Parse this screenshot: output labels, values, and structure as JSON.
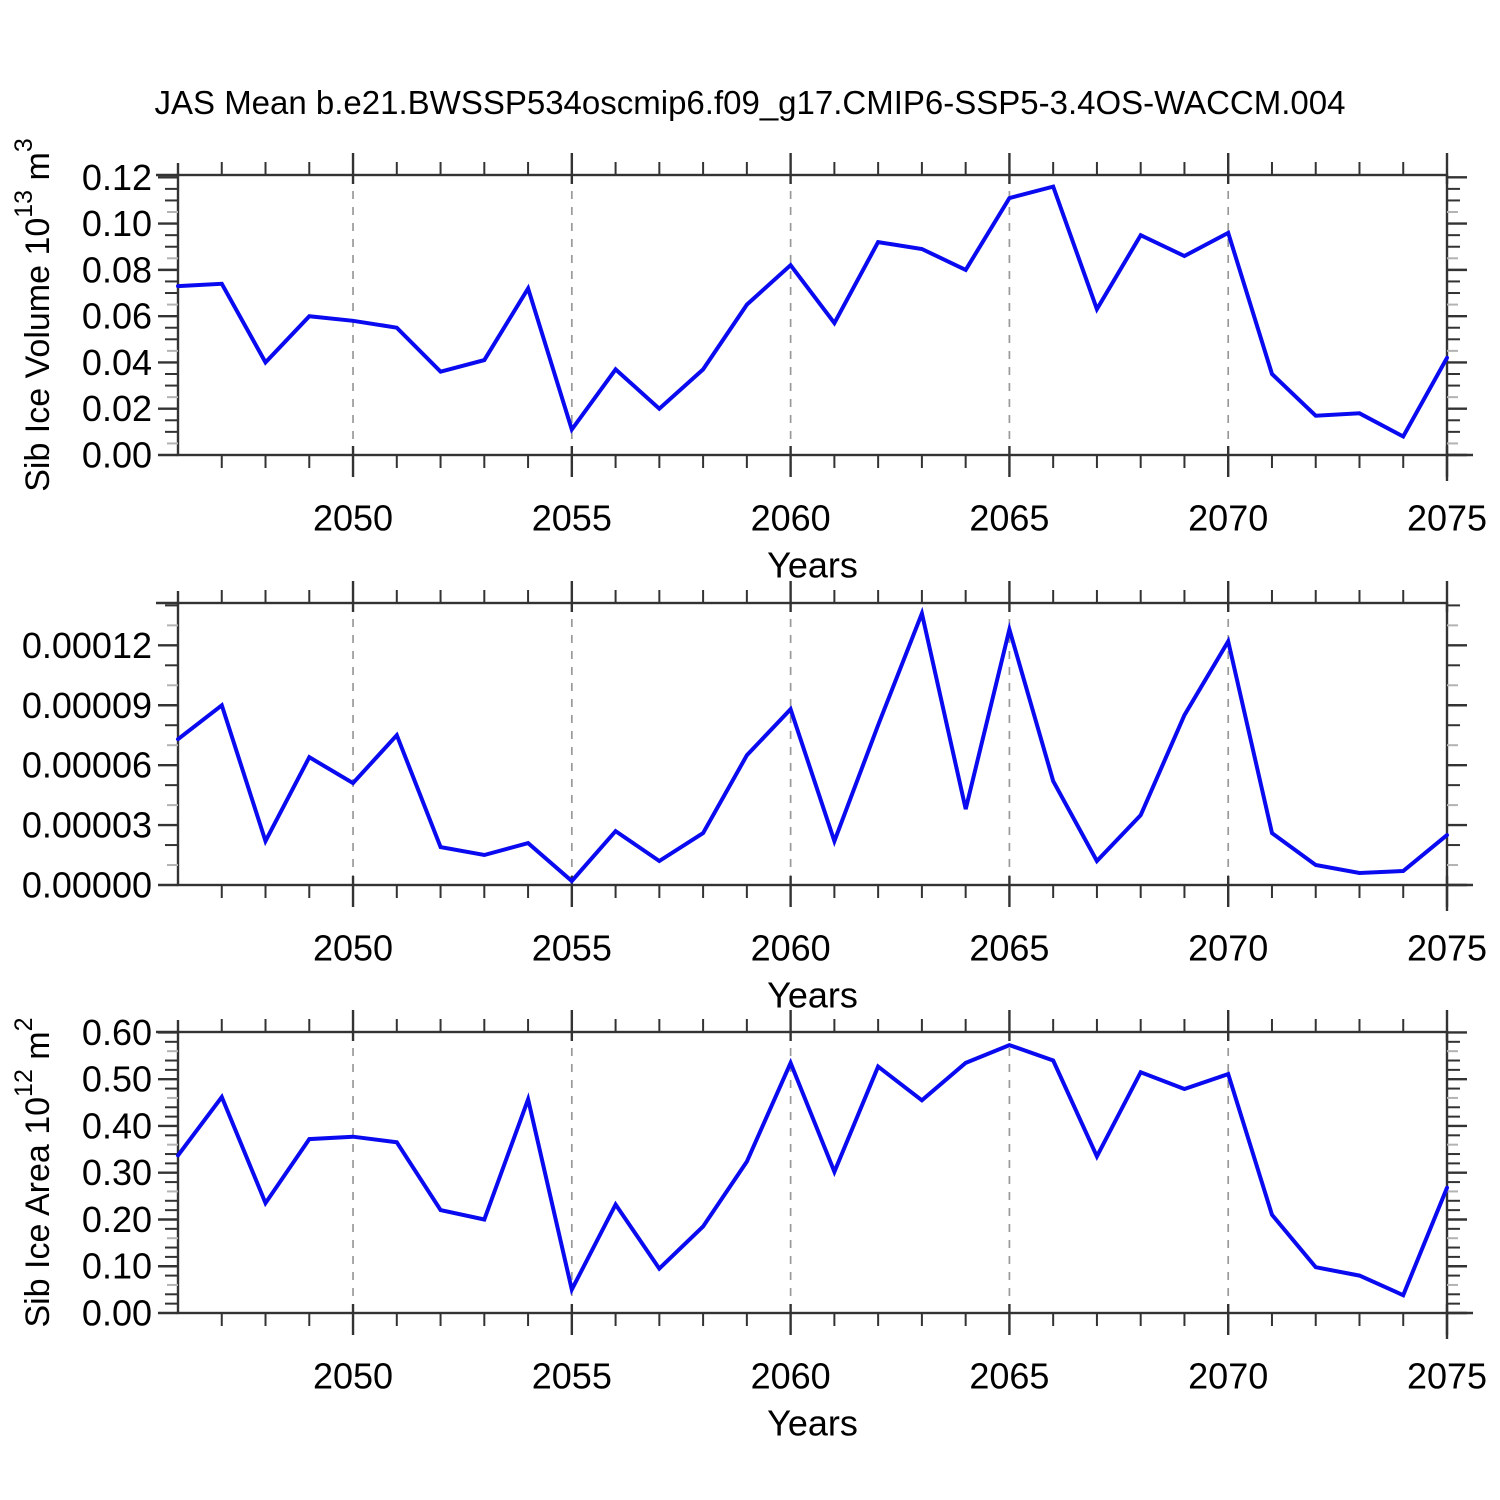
{
  "title": "JAS Mean b.e21.BWSSP534oscmip6.f09_g17.CMIP6-SSP5-3.4OS-WACCM.004",
  "colors": {
    "line": "#0a0af0",
    "axis": "#333333",
    "grid": "#999999",
    "gray_minor": "#b3b3b3",
    "text": "#000000",
    "background": "#ffffff"
  },
  "xlabel": "Years",
  "years": [
    2046,
    2047,
    2048,
    2049,
    2050,
    2051,
    2052,
    2053,
    2054,
    2055,
    2056,
    2057,
    2058,
    2059,
    2060,
    2061,
    2062,
    2063,
    2064,
    2065,
    2066,
    2067,
    2068,
    2069,
    2070,
    2071,
    2072,
    2073,
    2074,
    2075
  ],
  "chart_data": [
    {
      "type": "line",
      "title": "JAS Mean b.e21.BWSSP534oscmip6.f09_g17.CMIP6-SSP5-3.4OS-WACCM.004",
      "ylabel": "Sib Ice Volume 10^13 m^3",
      "ylabel_parts": {
        "base": "Sib Ice Volume 10",
        "exp": "13",
        "unit": " m",
        "unit_exp": "3"
      },
      "xlabel": "Years",
      "xlim": [
        2046,
        2075
      ],
      "ylim": [
        0,
        0.121
      ],
      "xticks": [
        2050,
        2055,
        2060,
        2065,
        2070,
        2075
      ],
      "grid_years": [
        2050,
        2055,
        2060,
        2065,
        2070
      ],
      "ytick_values": [
        0.0,
        0.02,
        0.04,
        0.06,
        0.08,
        0.1,
        0.12
      ],
      "ytick_labels": [
        "0.00",
        "0.02",
        "0.04",
        "0.06",
        "0.08",
        "0.10",
        "0.12"
      ],
      "minor_step": 0.005,
      "gray_minor_index": 0,
      "legend": "none",
      "grid": "vertical-dashed",
      "values": [
        0.073,
        0.074,
        0.04,
        0.06,
        0.058,
        0.055,
        0.036,
        0.041,
        0.072,
        0.011,
        0.037,
        0.02,
        0.037,
        0.065,
        0.082,
        0.057,
        0.092,
        0.089,
        0.08,
        0.111,
        0.116,
        0.063,
        0.095,
        0.086,
        0.096,
        0.035,
        0.017,
        0.018,
        0.008,
        0.042
      ]
    },
    {
      "type": "line",
      "ylabel": "",
      "ylabel_parts": null,
      "xlabel": "Years",
      "xlim": [
        2046,
        2075
      ],
      "ylim": [
        0,
        0.0001412
      ],
      "xticks": [
        2050,
        2055,
        2060,
        2065,
        2070,
        2075
      ],
      "grid_years": [
        2050,
        2055,
        2060,
        2065,
        2070
      ],
      "ytick_values": [
        0.0,
        3e-05,
        6e-05,
        9e-05,
        0.00012
      ],
      "ytick_labels": [
        "0.00000",
        "0.00003",
        "0.00006",
        "0.00009",
        "0.00012"
      ],
      "minor_step": 1e-05,
      "gray_minor_index": 0,
      "legend": "none",
      "grid": "vertical-dashed",
      "values": [
        7.3e-05,
        9e-05,
        2.2e-05,
        6.4e-05,
        5.1e-05,
        7.5e-05,
        1.9e-05,
        1.5e-05,
        2.1e-05,
        2e-06,
        2.7e-05,
        1.2e-05,
        2.6e-05,
        6.5e-05,
        8.8e-05,
        2.2e-05,
        8e-05,
        0.000136,
        3.8e-05,
        0.000128,
        5.2e-05,
        1.2e-05,
        3.5e-05,
        8.5e-05,
        0.000122,
        2.6e-05,
        1e-05,
        6e-06,
        7e-06,
        2.5e-05
      ]
    },
    {
      "type": "line",
      "ylabel": "Sib Ice Area 10^12 m^2",
      "ylabel_parts": {
        "base": "Sib Ice Area 10",
        "exp": "12",
        "unit": " m",
        "unit_exp": "2"
      },
      "xlabel": "Years",
      "xlim": [
        2046,
        2075
      ],
      "ylim": [
        0,
        0.601
      ],
      "xticks": [
        2050,
        2055,
        2060,
        2065,
        2070,
        2075
      ],
      "grid_years": [
        2050,
        2055,
        2060,
        2065,
        2070
      ],
      "ytick_values": [
        0.0,
        0.1,
        0.2,
        0.3,
        0.4,
        0.5,
        0.6
      ],
      "ytick_labels": [
        "0.00",
        "0.10",
        "0.20",
        "0.30",
        "0.40",
        "0.50",
        "0.60"
      ],
      "minor_step": 0.02,
      "gray_minor_index": 2,
      "legend": "none",
      "grid": "vertical-dashed",
      "values": [
        0.337,
        0.462,
        0.235,
        0.372,
        0.377,
        0.365,
        0.22,
        0.2,
        0.457,
        0.05,
        0.232,
        0.095,
        0.185,
        0.324,
        0.535,
        0.302,
        0.527,
        0.455,
        0.535,
        0.573,
        0.54,
        0.335,
        0.515,
        0.479,
        0.511,
        0.21,
        0.098,
        0.08,
        0.038,
        0.268
      ]
    }
  ]
}
